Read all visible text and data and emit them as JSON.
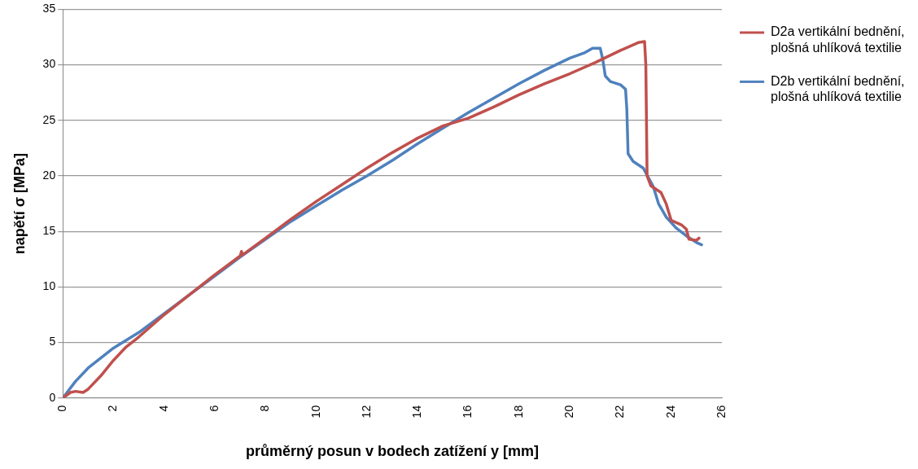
{
  "chart_data": {
    "type": "line",
    "xlabel": "průměrný posun v bodech zatížení y [mm]",
    "ylabel": "napětí σ [MPa]",
    "xlim": [
      0,
      26
    ],
    "xticks": [
      0,
      2,
      4,
      6,
      8,
      10,
      12,
      14,
      16,
      18,
      20,
      22,
      24,
      26
    ],
    "ylim": [
      0,
      35
    ],
    "yticks": [
      0,
      5,
      10,
      15,
      20,
      25,
      30,
      35
    ],
    "grid": "y",
    "legend": "right",
    "marker": "none",
    "series": [
      {
        "name": "D2a vertikální bednění, plošná uhlíková textilie",
        "color": "#c0504d",
        "x": [
          0,
          0.3,
          0.5,
          0.8,
          1,
          1.5,
          2,
          2.5,
          3,
          4,
          5,
          6,
          7,
          7.05,
          7.1,
          8,
          9,
          10,
          11,
          12,
          13,
          14,
          15,
          16,
          17,
          18,
          19,
          20,
          21,
          22,
          22.7,
          22.95,
          23,
          23.05,
          23.2,
          23.6,
          23.8,
          24,
          24.4,
          24.6,
          24.7,
          25,
          25.1
        ],
        "values": [
          0,
          0.5,
          0.6,
          0.5,
          0.8,
          2,
          3.4,
          4.6,
          5.5,
          7.5,
          9.3,
          11.1,
          12.8,
          13.2,
          12.9,
          14.4,
          16.1,
          17.7,
          19.2,
          20.7,
          22.1,
          23.4,
          24.5,
          25.2,
          26.2,
          27.3,
          28.3,
          29.2,
          30.2,
          31.3,
          32,
          32.1,
          30,
          20,
          19.1,
          18.5,
          17.5,
          16,
          15.6,
          15.2,
          14.3,
          14.2,
          14.4
        ]
      },
      {
        "name": "D2b vertikální bednění, plošná uhlíková textilie",
        "color": "#4f81bd",
        "x": [
          0,
          0.5,
          1,
          2,
          3,
          4,
          5,
          6,
          7,
          8,
          9,
          10,
          11,
          12,
          13,
          14,
          15,
          16,
          17,
          18,
          19,
          20,
          20.6,
          20.9,
          21.2,
          21.3,
          21.4,
          21.6,
          22,
          22.2,
          22.25,
          22.3,
          22.5,
          22.9,
          23.3,
          23.5,
          23.8,
          24.2,
          24.6,
          25,
          25.2
        ],
        "values": [
          0,
          1.5,
          2.7,
          4.5,
          5.9,
          7.6,
          9.3,
          11,
          12.7,
          14.3,
          15.9,
          17.3,
          18.7,
          20,
          21.4,
          22.9,
          24.3,
          25.7,
          27,
          28.3,
          29.5,
          30.6,
          31.1,
          31.5,
          31.5,
          30.5,
          29,
          28.5,
          28.2,
          27.8,
          26,
          22,
          21.3,
          20.7,
          19,
          17.5,
          16.3,
          15.3,
          14.6,
          14,
          13.8
        ]
      }
    ]
  }
}
